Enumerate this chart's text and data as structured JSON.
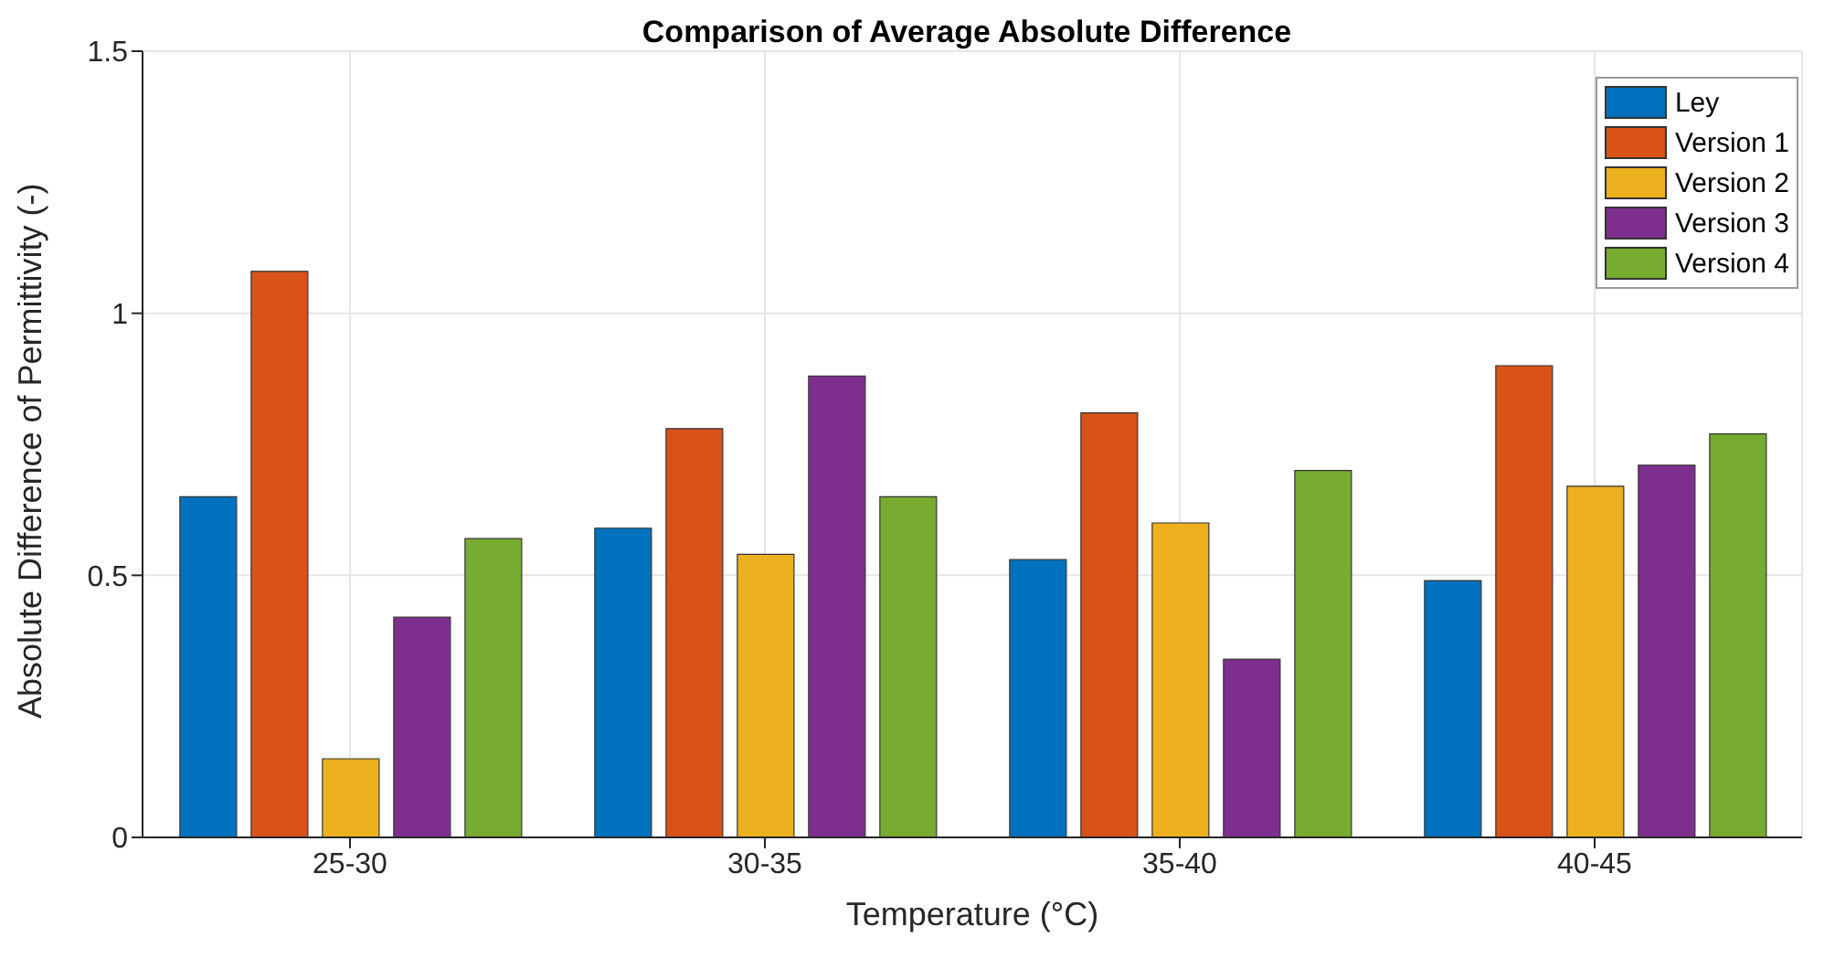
{
  "chart_data": {
    "type": "bar",
    "title": "Comparison of Average Absolute Difference",
    "xlabel": "Temperature (°C)",
    "ylabel": "Absolute Difference of Permittivity (-)",
    "categories": [
      "25-30",
      "30-35",
      "35-40",
      "40-45"
    ],
    "series": [
      {
        "name": "Ley",
        "color": "#0072bd",
        "values": [
          0.65,
          0.59,
          0.53,
          0.49
        ]
      },
      {
        "name": "Version 1",
        "color": "#d95319",
        "values": [
          1.08,
          0.78,
          0.81,
          0.9
        ]
      },
      {
        "name": "Version 2",
        "color": "#edb120",
        "values": [
          0.15,
          0.54,
          0.6,
          0.67
        ]
      },
      {
        "name": "Version 3",
        "color": "#7e2f8e",
        "values": [
          0.42,
          0.88,
          0.34,
          0.71
        ]
      },
      {
        "name": "Version 4",
        "color": "#77ac30",
        "values": [
          0.57,
          0.65,
          0.7,
          0.77
        ]
      }
    ],
    "ylim": [
      0,
      1.5
    ],
    "yticks": [
      0,
      0.5,
      1,
      1.5
    ],
    "grid": true,
    "legend": "top right"
  }
}
